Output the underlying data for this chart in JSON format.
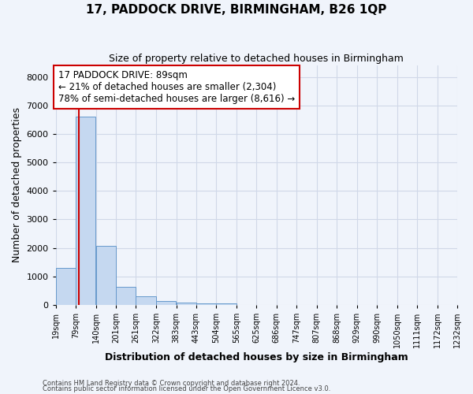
{
  "title": "17, PADDOCK DRIVE, BIRMINGHAM, B26 1QP",
  "subtitle": "Size of property relative to detached houses in Birmingham",
  "xlabel": "Distribution of detached houses by size in Birmingham",
  "ylabel": "Number of detached properties",
  "footnote1": "Contains HM Land Registry data © Crown copyright and database right 2024.",
  "footnote2": "Contains public sector information licensed under the Open Government Licence v3.0.",
  "bar_left_edges": [
    19,
    79,
    140,
    201,
    261,
    322,
    383,
    443,
    504,
    565,
    625,
    686,
    747,
    807,
    868,
    929,
    990,
    1050,
    1111,
    1172
  ],
  "bar_widths": [
    60,
    61,
    61,
    60,
    61,
    61,
    60,
    61,
    61,
    60,
    61,
    61,
    60,
    61,
    61,
    61,
    60,
    61,
    61,
    60
  ],
  "bar_heights": [
    1300,
    6600,
    2080,
    640,
    300,
    130,
    90,
    65,
    65,
    0,
    0,
    0,
    0,
    0,
    0,
    0,
    0,
    0,
    0,
    0
  ],
  "bar_color": "#c5d8f0",
  "bar_edge_color": "#6699cc",
  "x_tick_labels": [
    "19sqm",
    "79sqm",
    "140sqm",
    "201sqm",
    "261sqm",
    "322sqm",
    "383sqm",
    "443sqm",
    "504sqm",
    "565sqm",
    "625sqm",
    "686sqm",
    "747sqm",
    "807sqm",
    "868sqm",
    "929sqm",
    "990sqm",
    "1050sqm",
    "1111sqm",
    "1172sqm",
    "1232sqm"
  ],
  "x_tick_positions": [
    19,
    79,
    140,
    201,
    261,
    322,
    383,
    443,
    504,
    565,
    625,
    686,
    747,
    807,
    868,
    929,
    990,
    1050,
    1111,
    1172,
    1232
  ],
  "ylim": [
    0,
    8400
  ],
  "xlim": [
    19,
    1232
  ],
  "property_size": 89,
  "vline_color": "#cc0000",
  "annotation_line1": "17 PADDOCK DRIVE: 89sqm",
  "annotation_line2": "← 21% of detached houses are smaller (2,304)",
  "annotation_line3": "78% of semi-detached houses are larger (8,616) →",
  "annotation_box_color": "#ffffff",
  "annotation_border_color": "#cc0000",
  "background_color": "#f0f4fb",
  "plot_bg_color": "#f0f4fb",
  "grid_color": "#d0d8e8",
  "title_fontsize": 11,
  "subtitle_fontsize": 9,
  "axis_label_fontsize": 9,
  "tick_fontsize": 7,
  "annotation_fontsize": 8.5
}
